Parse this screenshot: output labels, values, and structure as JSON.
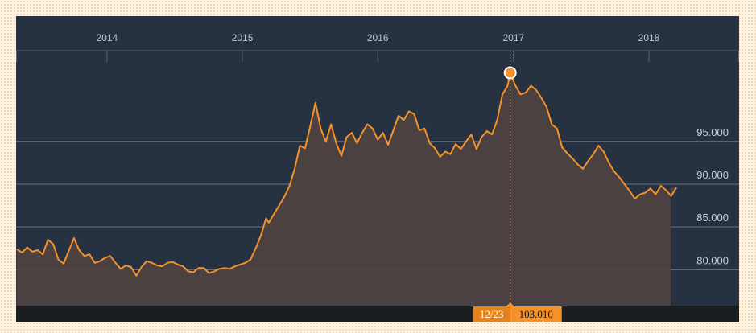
{
  "chart_data": {
    "type": "area",
    "title": "",
    "xlabel": "",
    "ylabel": "",
    "x_ticks": [
      "2014",
      "2015",
      "2016",
      "2017",
      "2018"
    ],
    "y_ticks": [
      80.0,
      85.0,
      90.0,
      95.0
    ],
    "y_tick_labels": [
      "80.000",
      "85.000",
      "90.000",
      "95.000"
    ],
    "xlim": [
      "2013-05-01",
      "2018-09-01"
    ],
    "ylim": [
      75.8,
      105.6
    ],
    "grid": "horizontal",
    "legend": "none",
    "line_color": "#f5922a",
    "area_color": "#4e4240",
    "highlight": {
      "date": "2016-12-23",
      "date_label": "12/23",
      "value": 103.01,
      "value_label": "103.010"
    },
    "series": [
      {
        "x": [
          "2013-05-03",
          "2013-05-17",
          "2013-05-31",
          "2013-06-14",
          "2013-06-28",
          "2013-07-12",
          "2013-07-26",
          "2013-08-09",
          "2013-08-23",
          "2013-09-06",
          "2013-09-20",
          "2013-10-04",
          "2013-10-18",
          "2013-11-01",
          "2013-11-15",
          "2013-11-29",
          "2013-12-13",
          "2013-12-27",
          "2014-01-10",
          "2014-01-24",
          "2014-02-07",
          "2014-02-21",
          "2014-03-07",
          "2014-03-21",
          "2014-04-04",
          "2014-04-18",
          "2014-05-02",
          "2014-05-16",
          "2014-05-30",
          "2014-06-13",
          "2014-06-27",
          "2014-07-11",
          "2014-07-25",
          "2014-08-08",
          "2014-08-22",
          "2014-09-05",
          "2014-09-19",
          "2014-10-03",
          "2014-10-17",
          "2014-10-31",
          "2014-11-14",
          "2014-11-28",
          "2014-12-12",
          "2014-12-26",
          "2015-01-09",
          "2015-01-23",
          "2015-02-06",
          "2015-02-20",
          "2015-03-06",
          "2015-03-13",
          "2015-03-27",
          "2015-04-10",
          "2015-04-24",
          "2015-05-08",
          "2015-05-22",
          "2015-06-05",
          "2015-06-19",
          "2015-07-03",
          "2015-07-17",
          "2015-07-31",
          "2015-08-14",
          "2015-08-28",
          "2015-09-11",
          "2015-09-25",
          "2015-10-09",
          "2015-10-23",
          "2015-11-06",
          "2015-11-20",
          "2015-12-04",
          "2015-12-18",
          "2016-01-01",
          "2016-01-15",
          "2016-01-29",
          "2016-02-12",
          "2016-02-26",
          "2016-03-11",
          "2016-03-25",
          "2016-04-08",
          "2016-04-22",
          "2016-05-06",
          "2016-05-20",
          "2016-06-03",
          "2016-06-17",
          "2016-07-01",
          "2016-07-15",
          "2016-07-29",
          "2016-08-12",
          "2016-08-26",
          "2016-09-09",
          "2016-09-23",
          "2016-10-07",
          "2016-10-21",
          "2016-11-04",
          "2016-11-18",
          "2016-12-02",
          "2016-12-16",
          "2016-12-23",
          "2017-01-06",
          "2017-01-20",
          "2017-02-03",
          "2017-02-17",
          "2017-03-03",
          "2017-03-17",
          "2017-03-31",
          "2017-04-14",
          "2017-04-28",
          "2017-05-12",
          "2017-05-26",
          "2017-06-09",
          "2017-06-23",
          "2017-07-07",
          "2017-07-21",
          "2017-08-04",
          "2017-08-18",
          "2017-09-01",
          "2017-09-15",
          "2017-09-29",
          "2017-10-13",
          "2017-10-27",
          "2017-11-10",
          "2017-11-24",
          "2017-12-08",
          "2017-12-22",
          "2018-01-05",
          "2018-01-19",
          "2018-02-02",
          "2018-02-16",
          "2018-03-02",
          "2018-03-16"
        ],
        "values": [
          82.4,
          82.0,
          82.6,
          82.1,
          82.3,
          81.8,
          83.5,
          83.0,
          81.2,
          80.7,
          82.2,
          83.7,
          82.3,
          81.6,
          81.8,
          80.8,
          81.0,
          81.4,
          81.6,
          80.8,
          80.1,
          80.5,
          80.3,
          79.3,
          80.3,
          81.0,
          80.8,
          80.5,
          80.4,
          80.8,
          80.9,
          80.6,
          80.4,
          79.8,
          79.7,
          80.2,
          80.2,
          79.6,
          79.8,
          80.1,
          80.2,
          80.1,
          80.4,
          80.6,
          80.8,
          81.2,
          82.5,
          84.0,
          86.0,
          85.5,
          86.5,
          87.5,
          88.5,
          89.8,
          91.8,
          94.5,
          94.2,
          96.8,
          99.5,
          96.5,
          95.0,
          97.0,
          94.8,
          93.3,
          95.5,
          96.0,
          94.8,
          96.0,
          97.0,
          96.5,
          95.2,
          96.0,
          94.6,
          96.3,
          98.0,
          97.5,
          98.5,
          98.2,
          96.3,
          96.5,
          94.8,
          94.2,
          93.2,
          93.8,
          93.5,
          94.7,
          94.1,
          95.0,
          95.8,
          94.1,
          95.5,
          96.2,
          95.8,
          97.5,
          100.5,
          101.5,
          103.01,
          101.5,
          100.5,
          100.7,
          101.5,
          101.0,
          100.1,
          99.0,
          97.0,
          96.5,
          94.3,
          93.6,
          93.0,
          92.3,
          91.8,
          92.7,
          93.5,
          94.5,
          93.8,
          92.5,
          91.5,
          90.8,
          90.0,
          89.2,
          88.3,
          88.8,
          89.0,
          89.5,
          88.8,
          89.8,
          89.3,
          88.6,
          89.6
        ]
      }
    ]
  }
}
